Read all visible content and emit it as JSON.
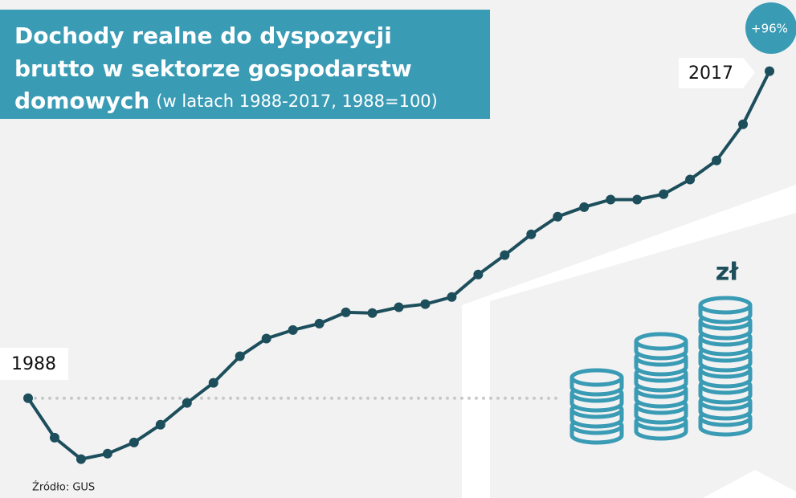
{
  "chart_data": {
    "type": "line",
    "title": [
      "Dochody realne do dyspozycji",
      "brutto w sektorze gospodarstw",
      "domowych"
    ],
    "subtitle": "(w latach 1988-2017, 1988=100)",
    "categories": [
      "1988",
      null,
      null,
      null,
      null,
      null,
      null,
      null,
      null,
      null,
      null,
      null,
      null,
      null,
      null,
      null,
      null,
      null,
      null,
      null,
      null,
      null,
      null,
      null,
      null,
      null,
      null,
      null,
      "2017"
    ],
    "values": [
      100,
      88.4,
      82.1,
      83.7,
      87.0,
      92.2,
      98.6,
      104.5,
      112.3,
      117.5,
      120.0,
      121.9,
      125.2,
      125.0,
      126.7,
      127.6,
      129.7,
      136.3,
      142.0,
      148.1,
      153.3,
      156.1,
      158.3,
      158.3,
      159.9,
      164.2,
      169.8,
      180.4,
      196
    ],
    "color": "#1d4e5c",
    "ylim": [
      80,
      200
    ],
    "baseline": 100,
    "annotation": "+96%",
    "icon_label": "zł",
    "source": "Źródło: GUS"
  }
}
